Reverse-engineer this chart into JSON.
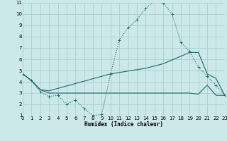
{
  "xlabel": "Humidex (Indice chaleur)",
  "bg_color": "#cce8e8",
  "grid_color": "#aacfcf",
  "line_color": "#1a6b6b",
  "xlim": [
    0,
    23
  ],
  "ylim": [
    1,
    11
  ],
  "xticks": [
    0,
    1,
    2,
    3,
    4,
    5,
    6,
    7,
    8,
    9,
    10,
    11,
    12,
    13,
    14,
    15,
    16,
    17,
    18,
    19,
    20,
    21,
    22,
    23
  ],
  "yticks": [
    1,
    2,
    3,
    4,
    5,
    6,
    7,
    8,
    9,
    10,
    11
  ],
  "curve1_x": [
    0,
    1,
    2,
    3,
    4,
    5,
    6,
    7,
    8,
    9,
    10,
    11,
    12,
    13,
    14,
    15,
    16,
    17,
    18,
    19,
    20,
    21,
    22,
    23
  ],
  "curve1_y": [
    4.7,
    4.1,
    3.1,
    2.7,
    2.8,
    2.0,
    2.4,
    1.6,
    1.0,
    1.1,
    4.7,
    7.7,
    8.8,
    9.5,
    10.5,
    11.2,
    11.0,
    10.0,
    7.5,
    6.7,
    5.3,
    4.5,
    3.7,
    2.8
  ],
  "curve2_x": [
    0,
    1,
    2,
    3,
    10,
    14,
    15,
    16,
    19,
    20,
    21,
    22,
    23
  ],
  "curve2_y": [
    4.7,
    4.1,
    3.3,
    3.2,
    4.7,
    5.2,
    5.4,
    5.6,
    6.6,
    6.6,
    4.7,
    4.3,
    2.8
  ],
  "curve3_x": [
    0,
    1,
    2,
    3,
    10,
    14,
    15,
    16,
    19,
    20,
    21,
    22,
    23
  ],
  "curve3_y": [
    4.7,
    4.1,
    3.3,
    3.0,
    3.0,
    3.0,
    3.0,
    3.0,
    3.0,
    2.9,
    3.7,
    2.8,
    2.8
  ]
}
